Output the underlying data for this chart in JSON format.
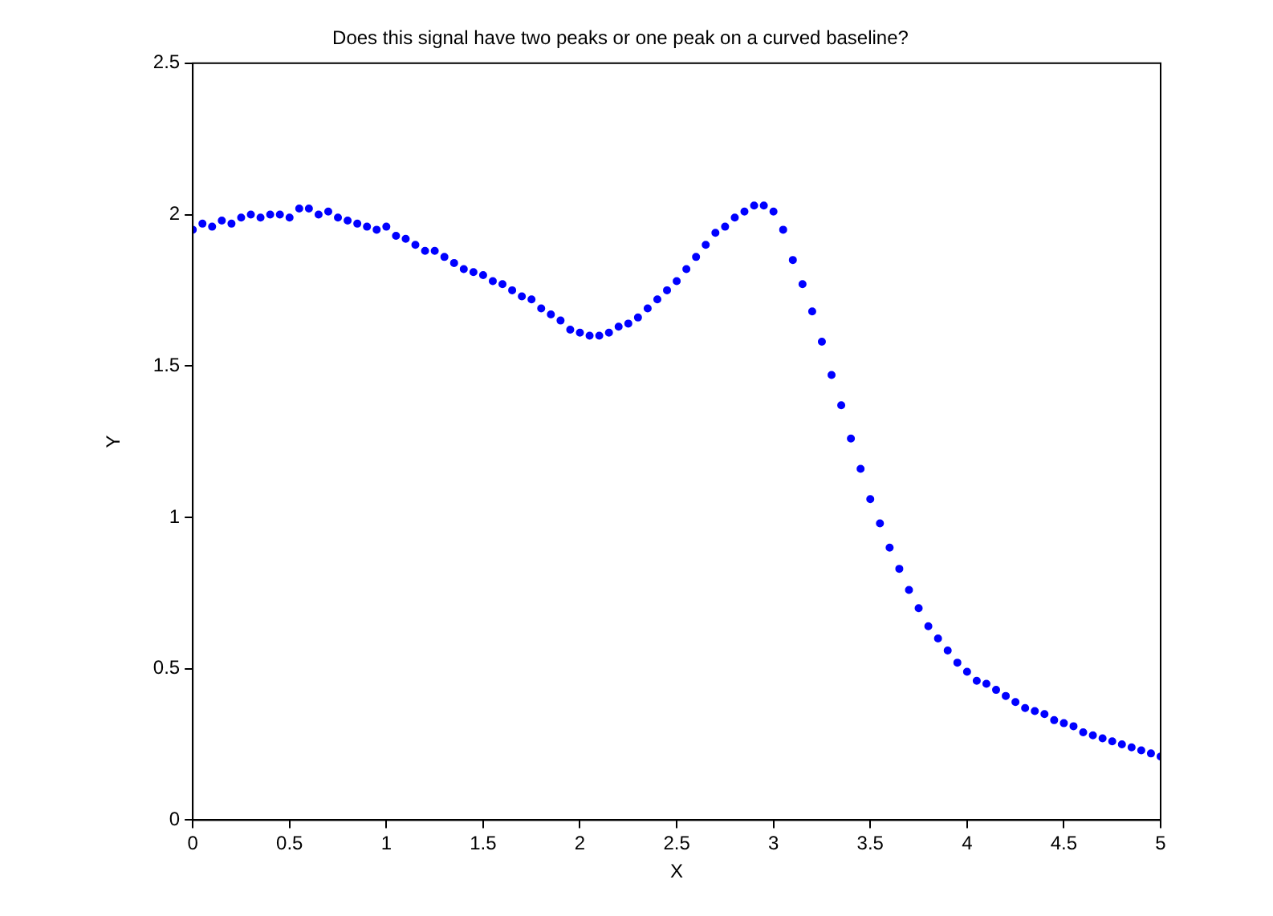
{
  "chart_data": {
    "type": "scatter",
    "title": "Does this signal have two peaks or one peak on a curved baseline?",
    "xlabel": "X",
    "ylabel": "Y",
    "x": [
      0,
      0.05,
      0.1,
      0.15,
      0.2,
      0.25,
      0.3,
      0.35,
      0.4,
      0.45,
      0.5,
      0.55,
      0.6,
      0.65,
      0.7,
      0.75,
      0.8,
      0.85,
      0.9,
      0.95,
      1,
      1.05,
      1.1,
      1.15,
      1.2,
      1.25,
      1.3,
      1.35,
      1.4,
      1.45,
      1.5,
      1.55,
      1.6,
      1.65,
      1.7,
      1.75,
      1.8,
      1.85,
      1.9,
      1.95,
      2,
      2.05,
      2.1,
      2.15,
      2.2,
      2.25,
      2.3,
      2.35,
      2.4,
      2.45,
      2.5,
      2.55,
      2.6,
      2.65,
      2.7,
      2.75,
      2.8,
      2.85,
      2.9,
      2.95,
      3,
      3.05,
      3.1,
      3.15,
      3.2,
      3.25,
      3.3,
      3.35,
      3.4,
      3.45,
      3.5,
      3.55,
      3.6,
      3.65,
      3.7,
      3.75,
      3.8,
      3.85,
      3.9,
      3.95,
      4,
      4.05,
      4.1,
      4.15,
      4.2,
      4.25,
      4.3,
      4.35,
      4.4,
      4.45,
      4.5,
      4.55,
      4.6,
      4.65,
      4.7,
      4.75,
      4.8,
      4.85,
      4.9,
      4.95,
      5
    ],
    "values": [
      1.95,
      1.97,
      1.96,
      1.98,
      1.97,
      1.99,
      2.0,
      1.99,
      2.0,
      2.0,
      1.99,
      2.02,
      2.02,
      2.0,
      2.01,
      1.99,
      1.98,
      1.97,
      1.96,
      1.95,
      1.96,
      1.93,
      1.92,
      1.9,
      1.88,
      1.88,
      1.86,
      1.84,
      1.82,
      1.81,
      1.8,
      1.78,
      1.77,
      1.75,
      1.73,
      1.72,
      1.69,
      1.67,
      1.65,
      1.62,
      1.61,
      1.6,
      1.6,
      1.61,
      1.63,
      1.64,
      1.66,
      1.69,
      1.72,
      1.75,
      1.78,
      1.82,
      1.86,
      1.9,
      1.94,
      1.96,
      1.99,
      2.01,
      2.03,
      2.03,
      2.01,
      1.95,
      1.85,
      1.77,
      1.68,
      1.58,
      1.47,
      1.37,
      1.26,
      1.16,
      1.06,
      0.98,
      0.9,
      0.83,
      0.76,
      0.7,
      0.64,
      0.6,
      0.56,
      0.52,
      0.49,
      0.46,
      0.45,
      0.43,
      0.41,
      0.39,
      0.37,
      0.36,
      0.35,
      0.33,
      0.32,
      0.31,
      0.29,
      0.28,
      0.27,
      0.26,
      0.25,
      0.24,
      0.23,
      0.22,
      0.21
    ],
    "color": "#0000ff",
    "marker": "circle",
    "xlim": [
      0,
      5
    ],
    "xticks": [
      0,
      0.5,
      1,
      1.5,
      2,
      2.5,
      3,
      3.5,
      4,
      4.5,
      5
    ],
    "ylim": [
      0,
      2.5
    ],
    "yticks": [
      0,
      0.5,
      1,
      1.5,
      2,
      2.5
    ],
    "grid": false,
    "legend": false
  }
}
